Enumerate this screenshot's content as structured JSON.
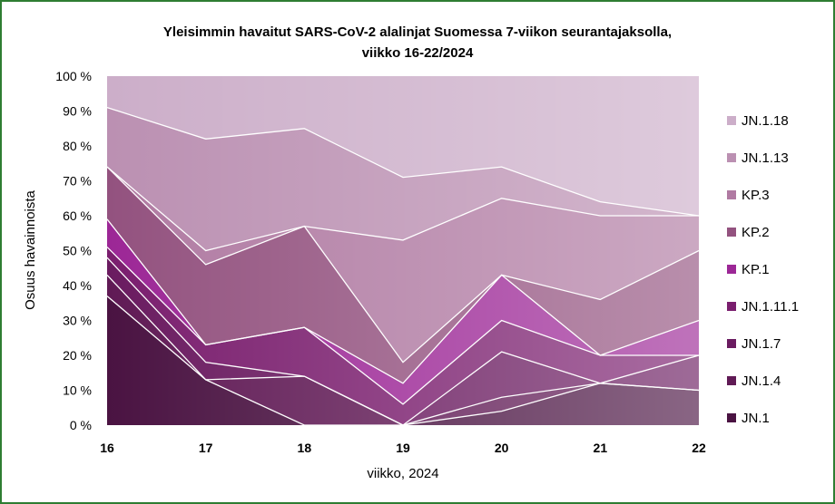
{
  "chart_data": {
    "type": "area",
    "stacked": true,
    "title_line1": "Yleisimmin havaitut SARS-CoV-2 alalinjat Suomessa 7-viikon seurantajaksolla,",
    "title_line2": "viikko 16-22/2024",
    "xlabel": "viikko, 2024",
    "ylabel": "Osuus havainnoista",
    "x": [
      "16",
      "17",
      "18",
      "19",
      "20",
      "21",
      "22"
    ],
    "ylim": [
      0,
      100
    ],
    "yticks": [
      "0 %",
      "10 %",
      "20 %",
      "30 %",
      "40 %",
      "50 %",
      "60 %",
      "70 %",
      "80 %",
      "90 %",
      "100 %"
    ],
    "legend_position": "right",
    "series": [
      {
        "name": "JN.1",
        "color": "#4a1342",
        "values": [
          37,
          13,
          0,
          0,
          4,
          12,
          10
        ]
      },
      {
        "name": "JN.1.4",
        "color": "#601a55",
        "values": [
          6,
          0,
          14,
          0,
          4,
          0,
          0
        ]
      },
      {
        "name": "JN.1.7",
        "color": "#6a1b60",
        "values": [
          5,
          5,
          0,
          0,
          13,
          0,
          10
        ]
      },
      {
        "name": "JN.1.11.1",
        "color": "#7a1e6e",
        "values": [
          3,
          5,
          14,
          6,
          9,
          8,
          0
        ]
      },
      {
        "name": "KP.1",
        "color": "#9c2796",
        "values": [
          8,
          0,
          0,
          6,
          13,
          0,
          10
        ]
      },
      {
        "name": "KP.2",
        "color": "#93527f",
        "values": [
          15,
          23,
          29,
          6,
          0,
          16,
          20
        ]
      },
      {
        "name": "KP.3",
        "color": "#b07aa2",
        "values": [
          0,
          4,
          0,
          35,
          22,
          24,
          10
        ]
      },
      {
        "name": "JN.1.13",
        "color": "#bb90b2",
        "values": [
          17,
          32,
          28,
          18,
          9,
          4,
          0
        ]
      },
      {
        "name": "JN.1.18",
        "color": "#ccaec9",
        "values": [
          9,
          18,
          15,
          29,
          26,
          36,
          40
        ]
      }
    ]
  }
}
